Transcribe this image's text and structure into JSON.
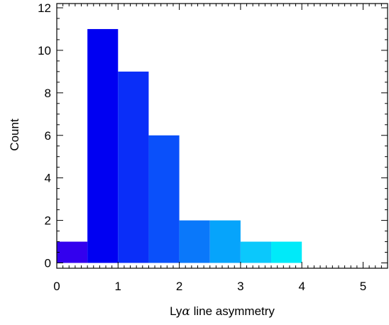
{
  "chart_data": {
    "type": "bar",
    "title": "",
    "xlabel": "Lyα line asymmetry",
    "xlabel_parts": {
      "pre": "Ly",
      "greek": "α",
      "post": " line asymmetry"
    },
    "ylabel": "Count",
    "xlim": [
      0,
      5.4
    ],
    "ylim": [
      -0.25,
      12.2
    ],
    "xticks": [
      0,
      1,
      2,
      3,
      4,
      5
    ],
    "xtick_labels": [
      "0",
      "1",
      "2",
      "3",
      "4",
      "5"
    ],
    "yticks": [
      0,
      2,
      4,
      6,
      8,
      10,
      12
    ],
    "ytick_labels": [
      "0",
      "2",
      "4",
      "6",
      "8",
      "10",
      "12"
    ],
    "grid": false,
    "legend": "none",
    "bin_width": 0.5,
    "bins": [
      {
        "x0": 0.0,
        "x1": 0.5,
        "count": 1,
        "color": "#3300ee"
      },
      {
        "x0": 0.5,
        "x1": 1.0,
        "count": 11,
        "color": "#0000f2"
      },
      {
        "x0": 1.0,
        "x1": 1.5,
        "count": 9,
        "color": "#0a2ef8"
      },
      {
        "x0": 1.5,
        "x1": 2.0,
        "count": 6,
        "color": "#0a50fa"
      },
      {
        "x0": 2.0,
        "x1": 2.5,
        "count": 2,
        "color": "#0a78fa"
      },
      {
        "x0": 2.5,
        "x1": 3.0,
        "count": 2,
        "color": "#06a4fb"
      },
      {
        "x0": 3.0,
        "x1": 3.5,
        "count": 1,
        "color": "#0bc8fc"
      },
      {
        "x0": 3.5,
        "x1": 4.0,
        "count": 1,
        "color": "#00eaf9"
      },
      {
        "x0": 4.0,
        "x1": 4.5,
        "count": 0,
        "color": "#00f8f0"
      }
    ]
  }
}
